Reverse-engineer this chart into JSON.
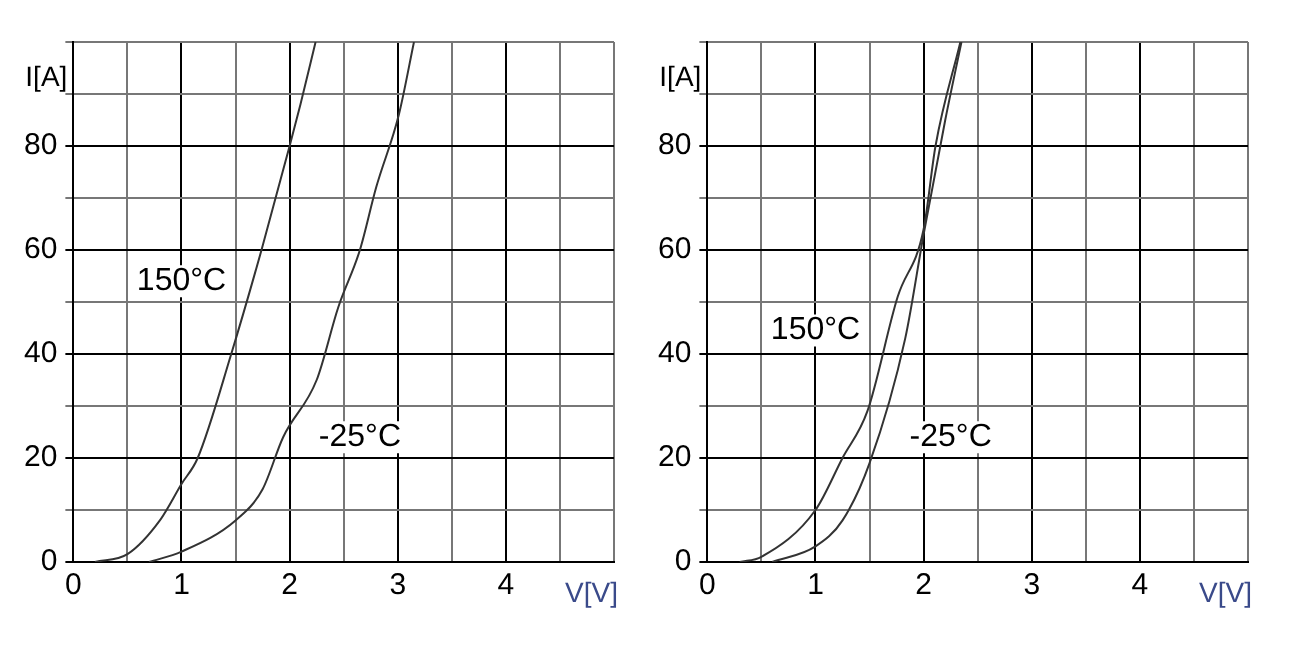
{
  "chart_data": [
    {
      "type": "line",
      "xlabel": "V[V]",
      "ylabel": "I[A]",
      "xlim": [
        0,
        5
      ],
      "ylim": [
        0,
        100
      ],
      "xticks": [
        0,
        {
          "value": 0.5,
          "label": null
        },
        1,
        {
          "value": 1.5,
          "label": null
        },
        2,
        {
          "value": 2.5,
          "label": null
        },
        3,
        {
          "value": 3.5,
          "label": null
        },
        4,
        {
          "value": 4.5,
          "label": null
        },
        {
          "value": 5,
          "label": null
        }
      ],
      "yticks": [
        0,
        {
          "value": 10,
          "label": null
        },
        20,
        {
          "value": 30,
          "label": null
        },
        40,
        {
          "value": 50,
          "label": null
        },
        60,
        {
          "value": 70,
          "label": null
        },
        80,
        {
          "value": 90,
          "label": null
        },
        {
          "value": 100,
          "label": null
        }
      ],
      "grid": true,
      "legend": false,
      "marker": "none",
      "line_style": "solid",
      "series": [
        {
          "color": "#333333",
          "x": [
            0.2,
            0.5,
            0.8,
            1,
            1.15,
            1.46,
            1.74,
            2,
            2.1,
            2.24
          ],
          "values": [
            0,
            1.5,
            8,
            15,
            20,
            40,
            60,
            80,
            88,
            100
          ]
        },
        {
          "color": "#333333",
          "x": [
            0.7,
            1,
            1.5,
            1.75,
            1.94,
            2.25,
            2.45,
            2.65,
            2.8,
            3.01,
            3.15
          ],
          "values": [
            0,
            2,
            8,
            14,
            24,
            35,
            49,
            60,
            72,
            86,
            100
          ]
        }
      ],
      "annotations": [
        "150°C",
        "-25°C"
      ]
    },
    {
      "type": "line",
      "xlabel": "V[V]",
      "ylabel": "I[A]",
      "xlim": [
        0,
        5
      ],
      "ylim": [
        0,
        100
      ],
      "xticks": [
        0,
        {
          "value": 0.5,
          "label": null
        },
        1,
        {
          "value": 1.5,
          "label": null
        },
        2,
        {
          "value": 2.5,
          "label": null
        },
        3,
        {
          "value": 3.5,
          "label": null
        },
        4,
        {
          "value": 4.5,
          "label": null
        },
        {
          "value": 5,
          "label": null
        }
      ],
      "yticks": [
        0,
        {
          "value": 10,
          "label": null
        },
        20,
        {
          "value": 30,
          "label": null
        },
        40,
        {
          "value": 50,
          "label": null
        },
        60,
        {
          "value": 70,
          "label": null
        },
        80,
        {
          "value": 90,
          "label": null
        },
        {
          "value": 100,
          "label": null
        }
      ],
      "grid": true,
      "legend": false,
      "marker": "none",
      "line_style": "solid",
      "series": [
        {
          "color": "#333333",
          "x": [
            0.3,
            0.5,
            1,
            1.25,
            1.48,
            1.76,
            2,
            2.11,
            2.34
          ],
          "values": [
            0,
            1,
            10,
            20,
            29,
            51,
            64,
            80,
            100
          ]
        },
        {
          "color": "#333333",
          "x": [
            0.6,
            1,
            1.25,
            1.5,
            1.83,
            2,
            2.2,
            2.35
          ],
          "values": [
            0,
            3,
            8,
            19,
            43,
            63,
            85,
            100
          ]
        }
      ],
      "annotations": [
        "150°C",
        "-25°C"
      ]
    }
  ]
}
